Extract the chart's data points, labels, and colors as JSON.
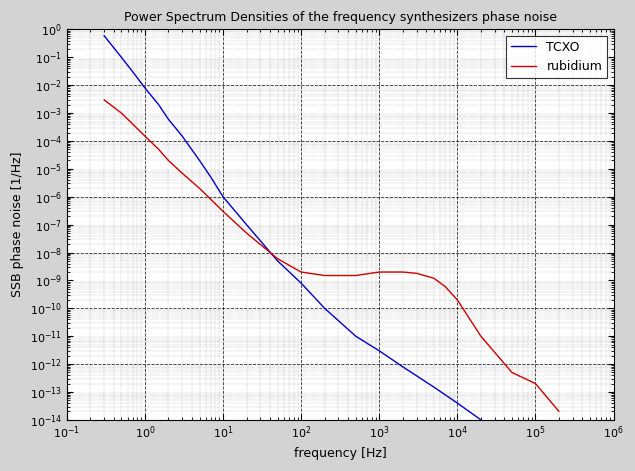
{
  "title": "Power Spectrum Densities of the frequency synthesizers phase noise",
  "xlabel": "frequency [Hz]",
  "ylabel": "SSB phase noise [1/Hz]",
  "xlim": [
    0.1,
    1000000.0
  ],
  "ylim": [
    1e-14,
    1.0
  ],
  "background_color": "#ffffff",
  "line_color_tcxo": "#0000cc",
  "line_color_rubidium": "#cc0000",
  "legend_labels": [
    "TCXO",
    "rubidium"
  ],
  "tcxo_x": [
    0.3,
    0.5,
    0.7,
    1.0,
    1.5,
    2.0,
    3.0,
    5.0,
    7.0,
    10.0,
    20.0,
    50.0,
    100.0,
    200.0,
    500.0,
    1000.0,
    2000.0,
    5000.0,
    10000.0,
    20000.0
  ],
  "tcxo_y": [
    0.6,
    0.1,
    0.03,
    0.008,
    0.002,
    0.0006,
    0.00015,
    2e-05,
    5e-06,
    1e-06,
    1e-07,
    5e-09,
    8e-10,
    1e-10,
    1e-11,
    3e-12,
    8e-13,
    1.5e-13,
    4e-14,
    1e-14
  ],
  "rubidium_x": [
    0.3,
    0.5,
    0.7,
    1.0,
    1.5,
    2.0,
    3.0,
    5.0,
    7.0,
    10.0,
    20.0,
    50.0,
    100.0,
    200.0,
    500.0,
    1000.0,
    2000.0,
    3000.0,
    5000.0,
    7000.0,
    10000.0,
    20000.0,
    50000.0,
    100000.0,
    200000.0
  ],
  "rubidium_y": [
    0.003,
    0.001,
    0.0004,
    0.00015,
    5e-05,
    2e-05,
    7e-06,
    2e-06,
    8e-07,
    3e-07,
    5e-08,
    6e-09,
    2e-09,
    1.5e-09,
    1.5e-09,
    2e-09,
    2e-09,
    1.8e-09,
    1.2e-09,
    6e-10,
    2e-10,
    1e-11,
    5e-13,
    2e-13,
    2e-14
  ],
  "fig_facecolor": "#d3d3d3",
  "axes_facecolor": "#ffffff"
}
